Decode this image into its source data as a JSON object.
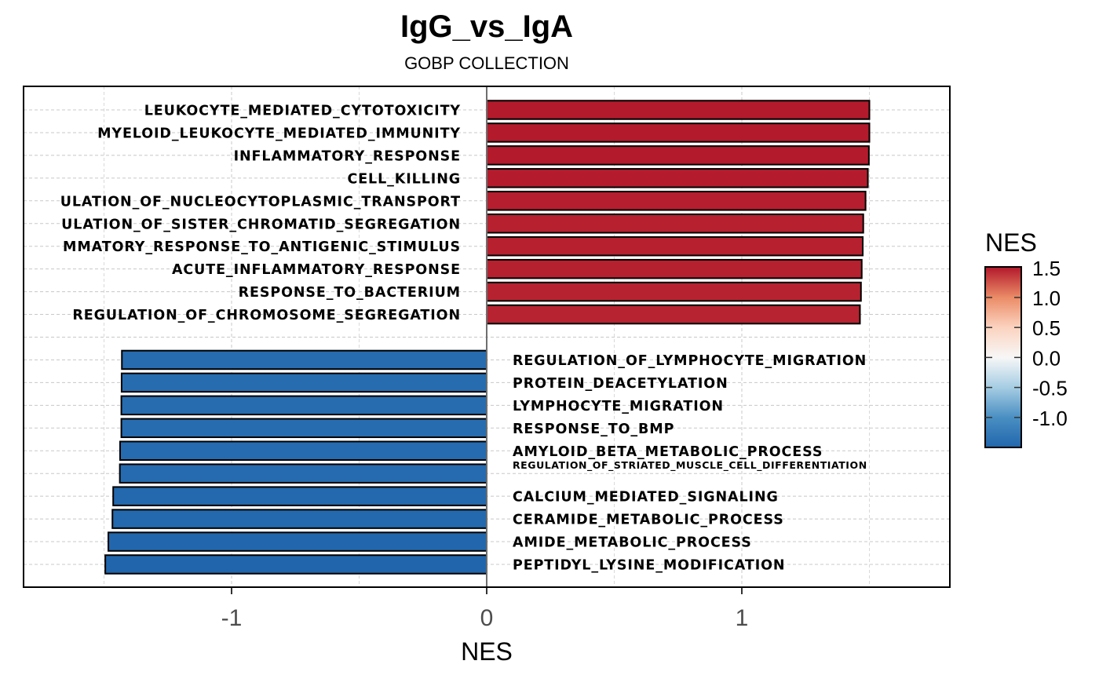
{
  "chart_data": {
    "type": "bar",
    "orientation": "horizontal",
    "title": "IgG_vs_IgA",
    "subtitle": "GOBP COLLECTION",
    "xlabel": "NES",
    "ylabel": "",
    "xlim": [
      -1.82,
      1.82
    ],
    "xticks": [
      -1,
      0,
      1
    ],
    "xtick_labels": [
      "-1",
      "0",
      "1"
    ],
    "grid": true,
    "legend": {
      "title": "NES",
      "placement": "right",
      "type": "colorbar",
      "range": [
        -1.5,
        1.51
      ],
      "ticks": [
        1.5,
        1.0,
        0.5,
        0.0,
        -0.5,
        -1.0
      ],
      "tick_labels": [
        "1.5",
        "1.0",
        "0.5",
        "0.0",
        "-0.5",
        "-1.0"
      ],
      "colors": {
        "high": "#B2182B",
        "mid_high": "#EF8A62",
        "light_high": "#FDDBC7",
        "mid": "#F7F7F7",
        "light_low": "#D1E5F0",
        "mid_low": "#67A9CF",
        "low": "#2166AC"
      }
    },
    "categories": [
      "LEUKOCYTE_MEDIATED_CYTOTOXICITY",
      "MYELOID_LEUKOCYTE_MEDIATED_IMMUNITY",
      "INFLAMMATORY_RESPONSE",
      "CELL_KILLING",
      "ULATION_OF_NUCLEOCYTOPLASMIC_TRANSPORT",
      "ULATION_OF_SISTER_CHROMATID_SEGREGATION",
      "MMATORY_RESPONSE_TO_ANTIGENIC_STIMULUS",
      "ACUTE_INFLAMMATORY_RESPONSE",
      "RESPONSE_TO_BACTERIUM",
      "REGULATION_OF_CHROMOSOME_SEGREGATION",
      "REGULATION_OF_LYMPHOCYTE_MIGRATION",
      "PROTEIN_DEACETYLATION",
      "LYMPHOCYTE_MIGRATION",
      "RESPONSE_TO_BMP",
      "AMYLOID_BETA_METABOLIC_PROCESS",
      "REGULATION_OF_STRIATED_MUSCLE_CELL_DIFFERENTIATION",
      "CALCIUM_MEDIATED_SIGNALING",
      "CERAMIDE_METABOLIC_PROCESS",
      "AMIDE_METABOLIC_PROCESS",
      "PEPTIDYL_LYSINE_MODIFICATION"
    ],
    "values": [
      1.5,
      1.5,
      1.498,
      1.494,
      1.485,
      1.476,
      1.474,
      1.47,
      1.467,
      1.463,
      -1.43,
      -1.431,
      -1.432,
      -1.432,
      -1.437,
      -1.438,
      -1.464,
      -1.467,
      -1.483,
      -1.495
    ]
  }
}
